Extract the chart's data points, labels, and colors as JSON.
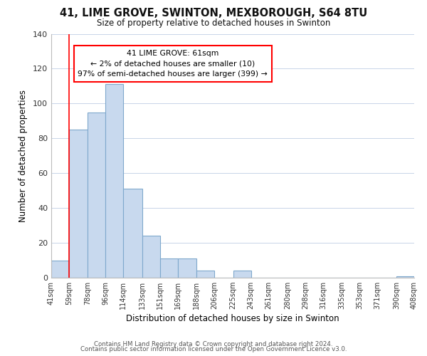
{
  "title": "41, LIME GROVE, SWINTON, MEXBOROUGH, S64 8TU",
  "subtitle": "Size of property relative to detached houses in Swinton",
  "xlabel": "Distribution of detached houses by size in Swinton",
  "ylabel": "Number of detached properties",
  "bar_color": "#c8d9ee",
  "bar_edge_color": "#7fa8cc",
  "red_line_x": 59,
  "bins": [
    41,
    59,
    78,
    96,
    114,
    133,
    151,
    169,
    188,
    206,
    225,
    243,
    261,
    280,
    298,
    316,
    335,
    353,
    371,
    390,
    408
  ],
  "counts": [
    10,
    85,
    95,
    111,
    51,
    24,
    11,
    11,
    4,
    0,
    4,
    0,
    0,
    0,
    0,
    0,
    0,
    0,
    0,
    1
  ],
  "tick_labels": [
    "41sqm",
    "59sqm",
    "78sqm",
    "96sqm",
    "114sqm",
    "133sqm",
    "151sqm",
    "169sqm",
    "188sqm",
    "206sqm",
    "225sqm",
    "243sqm",
    "261sqm",
    "280sqm",
    "298sqm",
    "316sqm",
    "335sqm",
    "353sqm",
    "371sqm",
    "390sqm",
    "408sqm"
  ],
  "ylim": [
    0,
    140
  ],
  "yticks": [
    0,
    20,
    40,
    60,
    80,
    100,
    120,
    140
  ],
  "annotation_title": "41 LIME GROVE: 61sqm",
  "annotation_line1": "← 2% of detached houses are smaller (10)",
  "annotation_line2": "97% of semi-detached houses are larger (399) →",
  "footer1": "Contains HM Land Registry data © Crown copyright and database right 2024.",
  "footer2": "Contains public sector information licensed under the Open Government Licence v3.0.",
  "background_color": "#ffffff",
  "grid_color": "#c8d4e8"
}
